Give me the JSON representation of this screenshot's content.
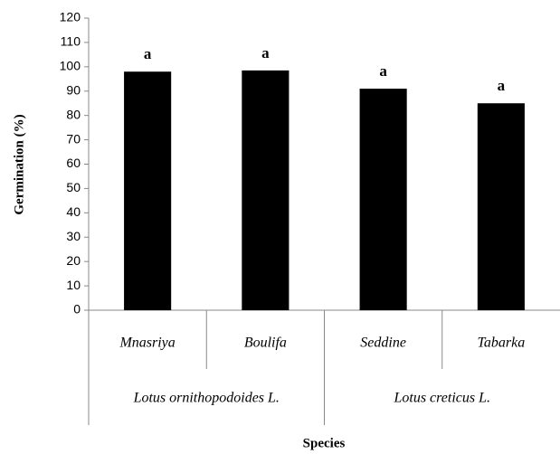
{
  "chart_data": {
    "type": "bar",
    "ylabel": "Germination (%)",
    "xlabel": "Species",
    "categories": [
      "Mnasriya",
      "Boulifa",
      "Seddine",
      "Tabarka"
    ],
    "groups": [
      "Lotus ornithopodoides L.",
      "Lotus creticus L."
    ],
    "values": [
      98,
      98.5,
      91,
      85
    ],
    "annotations": [
      "a",
      "a",
      "a",
      "a"
    ],
    "color": "#000000",
    "ylim": [
      0,
      120
    ],
    "yticks": [
      0,
      10,
      20,
      30,
      40,
      50,
      60,
      70,
      80,
      90,
      100,
      110,
      120
    ],
    "grid": false
  }
}
